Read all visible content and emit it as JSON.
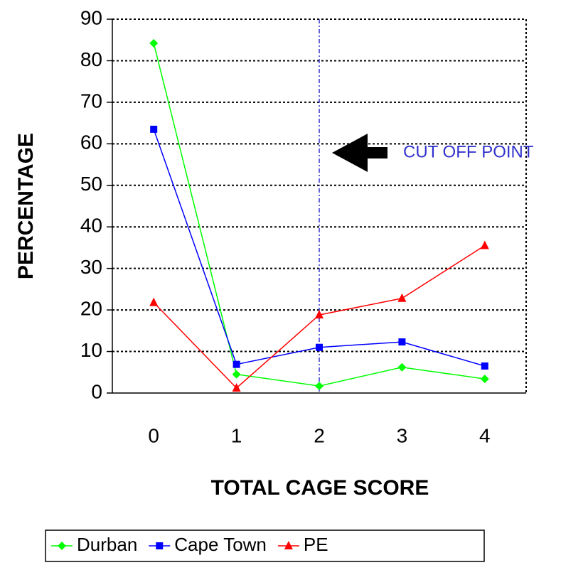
{
  "chart_data": {
    "type": "line",
    "xlabel": "TOTAL CAGE SCORE",
    "ylabel": "PERCENTAGE",
    "categories": [
      "0",
      "1",
      "2",
      "3",
      "4"
    ],
    "series": [
      {
        "name": "Durban",
        "color": "#00ff00",
        "marker": "diamond",
        "values": [
          84.2,
          4.5,
          1.7,
          6.2,
          3.4
        ]
      },
      {
        "name": "Cape Town",
        "color": "#0000ff",
        "marker": "square",
        "values": [
          63.5,
          6.9,
          11,
          12.3,
          6.5
        ]
      },
      {
        "name": "PE",
        "color": "#ff0000",
        "marker": "triangle",
        "values": [
          21.8,
          1.2,
          18.8,
          22.8,
          35.5
        ]
      }
    ],
    "ylim": [
      0,
      90
    ],
    "yticks": [
      0,
      10,
      20,
      30,
      40,
      50,
      60,
      70,
      80,
      90
    ],
    "grid": true,
    "legend": "bottom",
    "annotation": {
      "text": "CUT OFF POINT",
      "category": "2",
      "color": "#3333cc"
    }
  }
}
